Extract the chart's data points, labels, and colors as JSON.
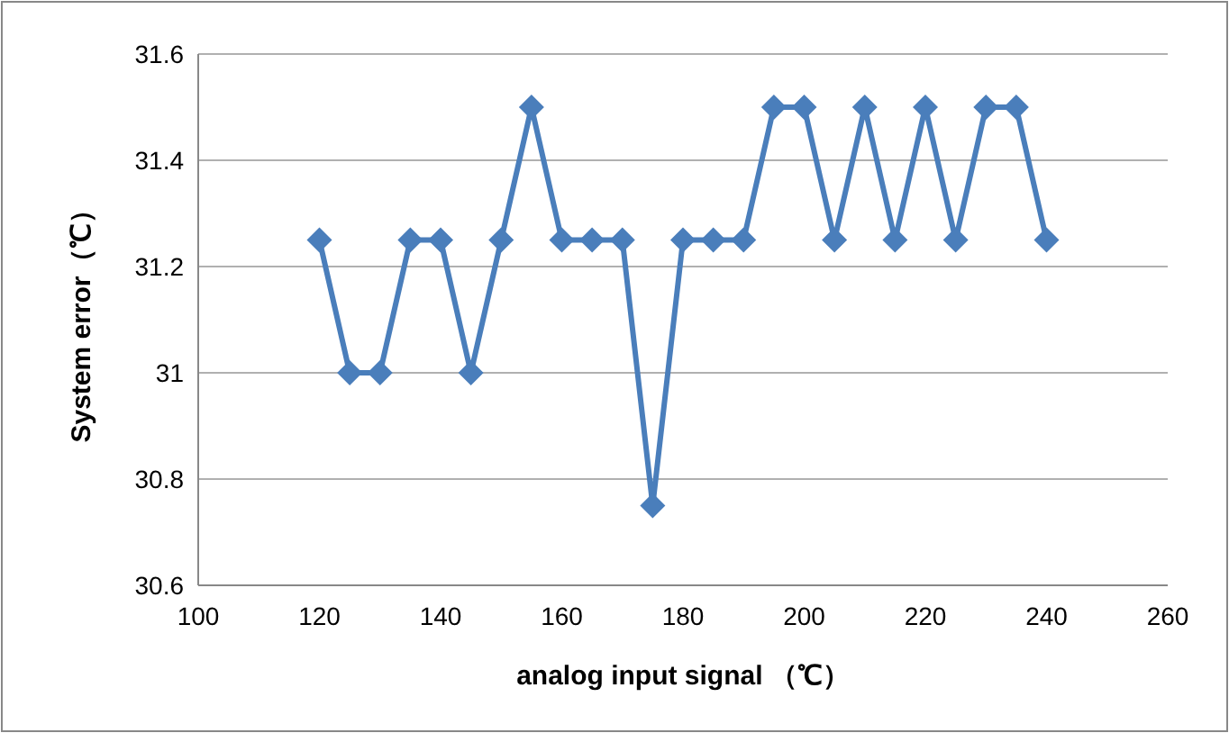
{
  "chart_data": {
    "type": "line",
    "xlabel": "analog input signal （℃）",
    "ylabel": "System error（℃）",
    "x": [
      120,
      125,
      130,
      135,
      140,
      145,
      150,
      155,
      160,
      165,
      170,
      175,
      180,
      185,
      190,
      195,
      200,
      205,
      210,
      215,
      220,
      225,
      230,
      235,
      240
    ],
    "series": [
      {
        "color": "#4a7ebb",
        "values": [
          31.25,
          31.0,
          31.0,
          31.25,
          31.25,
          31.0,
          31.25,
          31.5,
          31.25,
          31.25,
          31.25,
          30.75,
          31.25,
          31.25,
          31.25,
          31.5,
          31.5,
          31.25,
          31.5,
          31.25,
          31.5,
          31.25,
          31.5,
          31.5,
          31.25
        ]
      }
    ],
    "xlim": [
      100,
      260
    ],
    "xticks": [
      100,
      120,
      140,
      160,
      180,
      200,
      220,
      240,
      260
    ],
    "ylim": [
      30.6,
      31.6
    ],
    "yticks": [
      30.6,
      30.8,
      31,
      31.2,
      31.4,
      31.6
    ],
    "grid": "y",
    "marker": "diamond",
    "line_style": "solid"
  }
}
